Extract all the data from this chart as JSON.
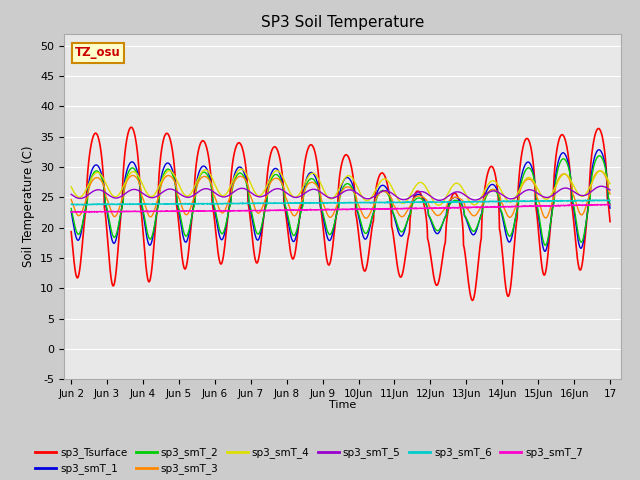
{
  "title": "SP3 Soil Temperature",
  "xlabel": "Time",
  "ylabel": "Soil Temperature (C)",
  "ylim": [
    -5,
    52
  ],
  "yticks": [
    -5,
    0,
    5,
    10,
    15,
    20,
    25,
    30,
    35,
    40,
    45,
    50
  ],
  "background_color": "#cccccc",
  "plot_bg_color": "#e8e8e8",
  "tz_label": "TZ_osu",
  "tz_bg": "#ffffcc",
  "tz_border": "#cc8800",
  "series_colors": {
    "sp3_Tsurface": "#ff0000",
    "sp3_smT_1": "#0000dd",
    "sp3_smT_2": "#00cc00",
    "sp3_smT_3": "#ff8800",
    "sp3_smT_4": "#dddd00",
    "sp3_smT_5": "#9900cc",
    "sp3_smT_6": "#00cccc",
    "sp3_smT_7": "#ff00cc"
  },
  "series_order": [
    "sp3_Tsurface",
    "sp3_smT_1",
    "sp3_smT_2",
    "sp3_smT_3",
    "sp3_smT_4",
    "sp3_smT_5",
    "sp3_smT_6",
    "sp3_smT_7"
  ],
  "n_days": 15,
  "points_per_day": 144
}
